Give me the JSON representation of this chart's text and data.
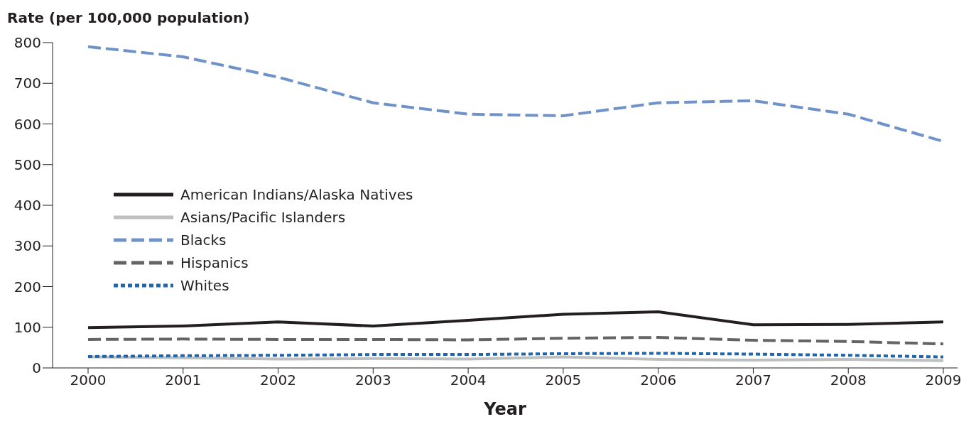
{
  "chart_data": {
    "type": "line",
    "ylabel": "Rate (per 100,000 population)",
    "xlabel": "Year",
    "categories": [
      "2000",
      "2001",
      "2002",
      "2003",
      "2004",
      "2005",
      "2006",
      "2007",
      "2008",
      "2009"
    ],
    "series": [
      {
        "name": "American Indians/Alaska Natives",
        "color": "#231f20",
        "line_style": "solid",
        "values": [
          99,
          103,
          113,
          103,
          117,
          132,
          138,
          106,
          107,
          113
        ]
      },
      {
        "name": "Asians/Pacific Islanders",
        "color": "#bcbec0",
        "line_style": "solid",
        "values": [
          27,
          25,
          22,
          23,
          22,
          27,
          21,
          19,
          21,
          18
        ]
      },
      {
        "name": "Blacks",
        "color": "#6f93c8",
        "line_style": "dashed",
        "values": [
          790,
          765,
          715,
          652,
          624,
          620,
          652,
          657,
          624,
          557
        ]
      },
      {
        "name": "Hispanics",
        "color": "#636466",
        "line_style": "dashed",
        "values": [
          70,
          71,
          70,
          70,
          69,
          73,
          75,
          68,
          65,
          59
        ]
      },
      {
        "name": "Whites",
        "color": "#2066a8",
        "line_style": "dotted",
        "values": [
          28,
          30,
          31,
          33,
          33,
          35,
          36,
          34,
          31,
          27
        ]
      }
    ],
    "ylim": [
      0,
      800
    ],
    "yticks": [
      0,
      100,
      200,
      300,
      400,
      500,
      600,
      700,
      800
    ],
    "grid": false,
    "legend": "left",
    "marker": "none"
  }
}
